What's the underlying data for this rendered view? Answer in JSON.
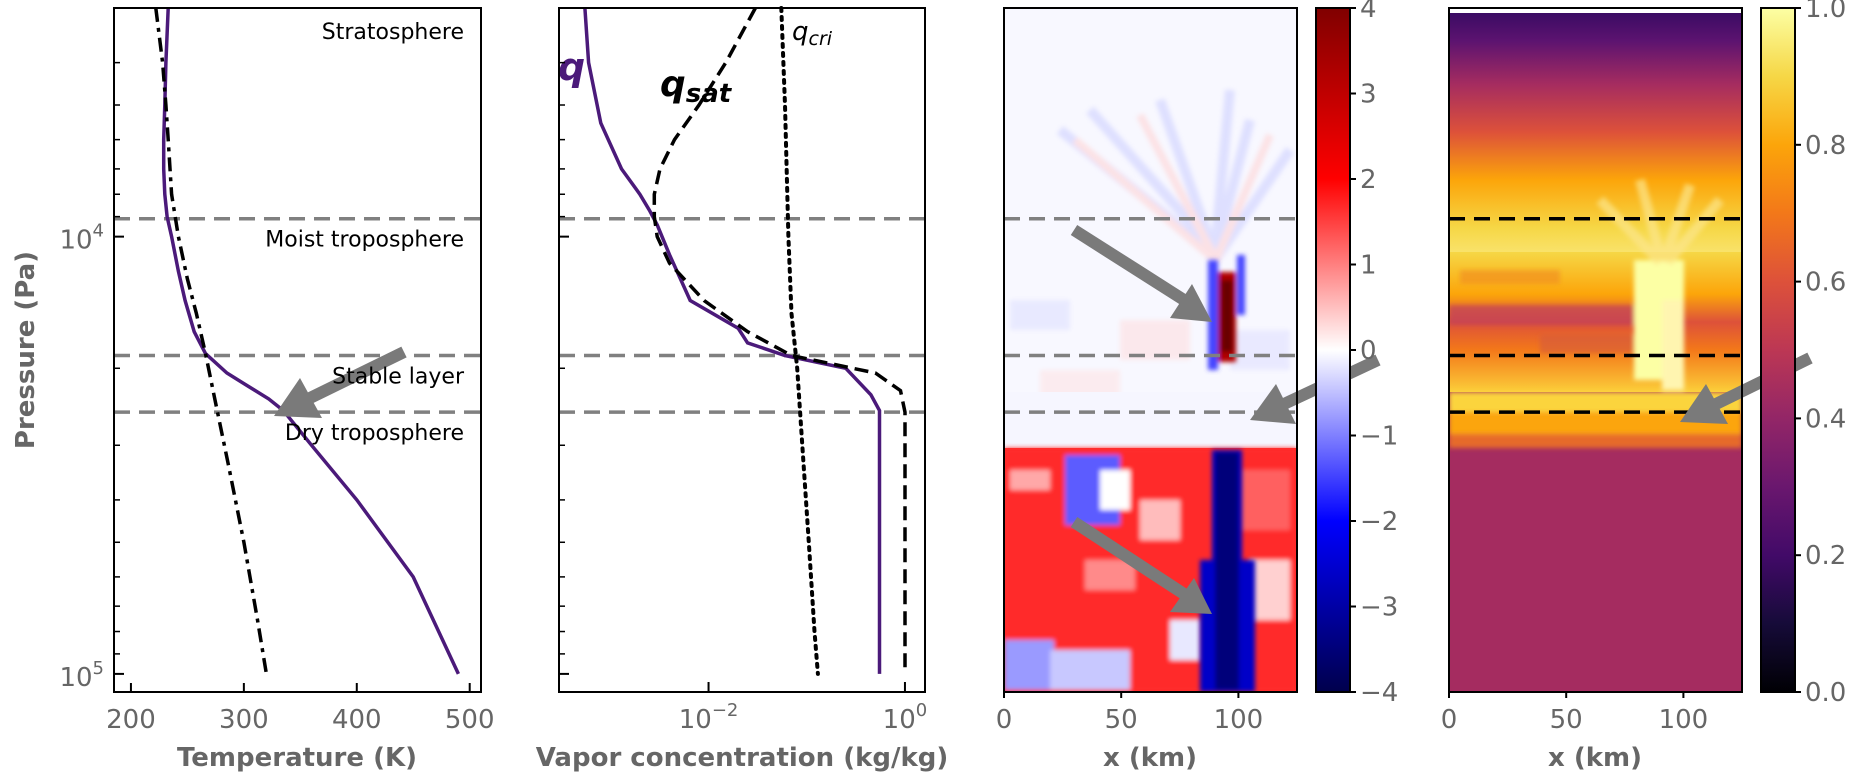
{
  "chart_data": [
    {
      "type": "line",
      "xlabel": "Temperature (K)",
      "ylabel": "Pressure (Pa)",
      "xlim": [
        185,
        510
      ],
      "ylim": [
        3000,
        110000
      ],
      "y_scale": "log",
      "y_inverted": true,
      "x_ticks": [
        200,
        300,
        400,
        500
      ],
      "y_ticks": [
        {
          "value": 10000,
          "base": "10",
          "exp": "4"
        },
        {
          "value": 100000,
          "base": "10",
          "exp": "5"
        }
      ],
      "series": [
        {
          "color": "#4b1a7a",
          "style": "solid",
          "x": [
            233,
            231,
            230,
            229,
            229,
            230,
            232,
            236,
            242,
            248,
            256,
            266,
            285,
            304,
            322,
            335,
            360,
            400,
            450,
            490
          ],
          "y": [
            3000,
            4000,
            5000,
            6000,
            7000,
            8000,
            9000,
            10000,
            12000,
            14000,
            16500,
            18500,
            20500,
            22000,
            23500,
            25000,
            30000,
            40000,
            60000,
            100000
          ]
        },
        {
          "color": "#000000",
          "style": "dashdot",
          "x": [
            222,
            228,
            231,
            233,
            236,
            242,
            250,
            258,
            266,
            275,
            286,
            300,
            312,
            320
          ],
          "y": [
            3000,
            4000,
            5000,
            6000,
            8000,
            10000,
            12500,
            15000,
            18500,
            24000,
            33000,
            50000,
            75000,
            100000
          ]
        }
      ],
      "layers": [
        {
          "name": "Moist troposphere",
          "pressure": 9100
        },
        {
          "name": "Stable layer",
          "pressure": 18700
        },
        {
          "name": "Dry troposphere",
          "pressure": 25200
        }
      ],
      "top_label": "Stratosphere"
    },
    {
      "type": "line",
      "xlabel": "Vapor concentration (kg/kg)",
      "xlim": [
        0.0003,
        1.6
      ],
      "x_scale": "log",
      "ylim": [
        3000,
        110000
      ],
      "y_scale": "log",
      "y_inverted": true,
      "x_ticks": [
        {
          "value": 0.01,
          "base": "10",
          "exp": "−2"
        },
        {
          "value": 1,
          "base": "10",
          "exp": "0"
        }
      ],
      "series": [
        {
          "name": "q",
          "color": "#4b1a7a",
          "style": "solid",
          "x": [
            0.00055,
            0.0006,
            0.0008,
            0.0013,
            0.002,
            0.0025,
            0.003,
            0.004,
            0.0065,
            0.02,
            0.025,
            0.06,
            0.25,
            0.45,
            0.55,
            0.55,
            0.55
          ],
          "y": [
            3000,
            4000,
            5500,
            7000,
            8000,
            8700,
            9400,
            11000,
            14000,
            16200,
            17500,
            18700,
            20000,
            23000,
            25000,
            50000,
            100000
          ]
        },
        {
          "name": "qsat",
          "color": "#000000",
          "style": "dashed",
          "x": [
            0.03,
            0.015,
            0.008,
            0.0045,
            0.0032,
            0.0028,
            0.0028,
            0.003,
            0.004,
            0.009,
            0.025,
            0.07,
            0.5,
            0.9,
            1.0,
            1.0,
            1.0
          ],
          "y": [
            3000,
            4000,
            5000,
            6000,
            7000,
            8000,
            9000,
            10000,
            11500,
            14000,
            16500,
            18700,
            20500,
            22500,
            25200,
            50000,
            100000
          ]
        },
        {
          "name": "q_cri",
          "color": "#000000",
          "style": "dotted",
          "x": [
            0.055,
            0.06,
            0.065,
            0.07,
            0.08,
            0.09,
            0.105,
            0.12,
            0.13
          ],
          "y": [
            3000,
            5000,
            10000,
            15000,
            20000,
            30000,
            50000,
            80000,
            100000
          ]
        }
      ],
      "series_labels": {
        "q": "q",
        "qsat_base": "q",
        "qsat_sub": "sat",
        "qcri_base": "q",
        "qcri_sub": "cri"
      },
      "layers": [
        {
          "pressure": 9100
        },
        {
          "pressure": 18700
        },
        {
          "pressure": 25200
        }
      ]
    },
    {
      "type": "heatmap",
      "xlabel": "x (km)",
      "xlim": [
        0,
        125
      ],
      "x_ticks": [
        0,
        50,
        100
      ],
      "colormap": "seismic",
      "colorbar_range": [
        -4,
        4
      ],
      "colorbar_ticks": [
        "4",
        "3",
        "2",
        "1",
        "0",
        "−1",
        "−2",
        "−3",
        "−4"
      ],
      "colorbar_tick_values": [
        4,
        3,
        2,
        1,
        0,
        -1,
        -2,
        -3,
        -4
      ],
      "layers": [
        {
          "pressure": 9100
        },
        {
          "pressure": 18700
        },
        {
          "pressure": 25200
        }
      ]
    },
    {
      "type": "heatmap",
      "xlabel": "x (km)",
      "xlim": [
        0,
        125
      ],
      "x_ticks": [
        0,
        50,
        100
      ],
      "colormap": "inferno",
      "colorbar_range": [
        0,
        1
      ],
      "colorbar_ticks": [
        "1.0",
        "0.8",
        "0.6",
        "0.4",
        "0.2",
        "0.0"
      ],
      "colorbar_tick_values": [
        1.0,
        0.8,
        0.6,
        0.4,
        0.2,
        0.0
      ],
      "layers": [
        {
          "pressure": 9100
        },
        {
          "pressure": 18700
        },
        {
          "pressure": 25200
        }
      ]
    }
  ],
  "colors": {
    "purple": "#4b1a7a",
    "grey_dash": "#808080",
    "arrow": "#7a7a7a",
    "seismic_red": "#ff2020",
    "seismic_dark_red": "#800000",
    "seismic_dark_blue": "#00007f",
    "inferno_purple": "#3a0b63",
    "inferno_magenta": "#a52c60",
    "inferno_yellow": "#fcffa4"
  }
}
